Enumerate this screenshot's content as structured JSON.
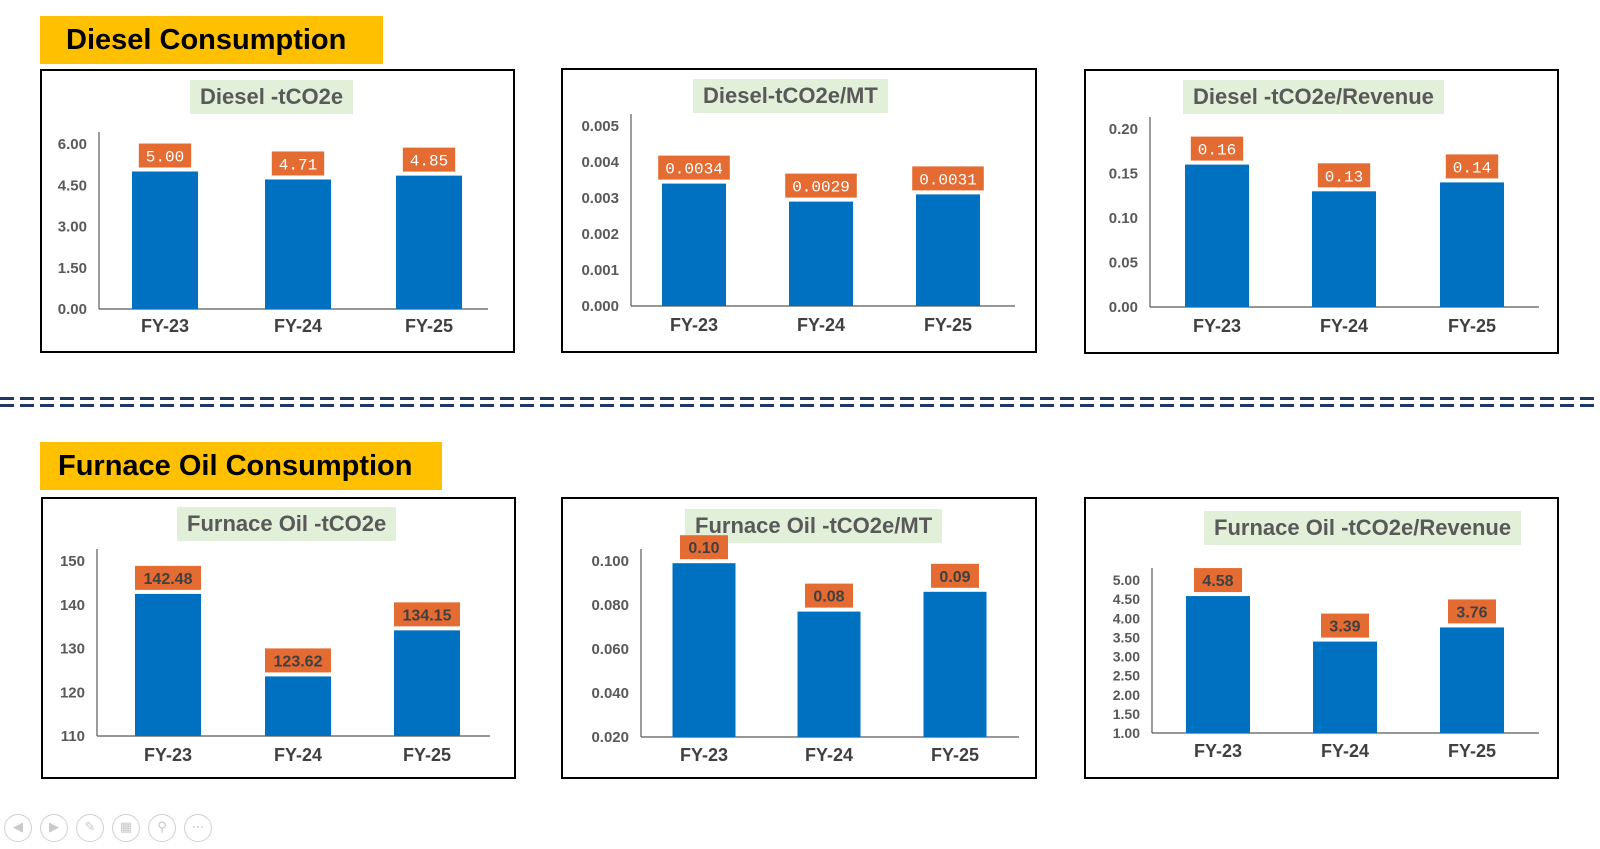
{
  "sections": {
    "diesel": "Diesel Consumption",
    "furnace": "Furnace Oil Consumption"
  },
  "colors": {
    "bar": "#0070c0",
    "label_bg": "#e46c33",
    "section_header": "#ffc000",
    "title_bg": "#e2f0d9",
    "divider": "#1f3864"
  },
  "player_controls": [
    "previous-icon",
    "next-icon",
    "pen-icon",
    "slides-icon",
    "zoom-icon",
    "more-icon"
  ],
  "chart_data": [
    {
      "type": "bar",
      "title": "Diesel -tCO2e",
      "categories": [
        "FY-23",
        "FY-24",
        "FY-25"
      ],
      "values": [
        5.0,
        4.71,
        4.85
      ],
      "data_labels": [
        "5.00",
        "4.71",
        "4.85"
      ],
      "ylim": [
        0,
        6
      ],
      "yticks": [
        "0.00",
        "1.50",
        "3.00",
        "4.50",
        "6.00"
      ],
      "label_font": "mono",
      "grid": false
    },
    {
      "type": "bar",
      "title": "Diesel-tCO2e/MT",
      "categories": [
        "FY-23",
        "FY-24",
        "FY-25"
      ],
      "values": [
        0.0034,
        0.0029,
        0.0031
      ],
      "data_labels": [
        "0.0034",
        "0.0029",
        "0.0031"
      ],
      "ylim": [
        0,
        0.005
      ],
      "yticks": [
        "0.000",
        "0.001",
        "0.002",
        "0.003",
        "0.004",
        "0.005"
      ],
      "label_font": "mono",
      "grid": false
    },
    {
      "type": "bar",
      "title": "Diesel -tCO2e/Revenue",
      "categories": [
        "FY-23",
        "FY-24",
        "FY-25"
      ],
      "values": [
        0.16,
        0.13,
        0.14
      ],
      "data_labels": [
        "0.16",
        "0.13",
        "0.14"
      ],
      "ylim": [
        0,
        0.2
      ],
      "yticks": [
        "0.00",
        "0.05",
        "0.10",
        "0.15",
        "0.20"
      ],
      "label_font": "mono",
      "grid": false
    },
    {
      "type": "bar",
      "title": "Furnace Oil -tCO2e",
      "categories": [
        "FY-23",
        "FY-24",
        "FY-25"
      ],
      "values": [
        142.48,
        123.62,
        134.15
      ],
      "data_labels": [
        "142.48",
        "123.62",
        "134.15"
      ],
      "ylim": [
        110,
        150
      ],
      "yticks": [
        "110",
        "120",
        "130",
        "140",
        "150"
      ],
      "label_font": "sans",
      "grid": false
    },
    {
      "type": "bar",
      "title": "Furnace Oil -tCO2e/MT",
      "categories": [
        "FY-23",
        "FY-24",
        "FY-25"
      ],
      "values": [
        0.099,
        0.077,
        0.086
      ],
      "data_labels": [
        "0.10",
        "0.08",
        "0.09"
      ],
      "ylim": [
        0.02,
        0.1
      ],
      "yticks": [
        "0.020",
        "0.040",
        "0.060",
        "0.080",
        "0.100"
      ],
      "label_font": "sans",
      "grid": false
    },
    {
      "type": "bar",
      "title": "Furnace Oil -tCO2e/Revenue",
      "categories": [
        "FY-23",
        "FY-24",
        "FY-25"
      ],
      "values": [
        4.58,
        3.39,
        3.76
      ],
      "data_labels": [
        "4.58",
        "3.39",
        "3.76"
      ],
      "ylim": [
        1,
        5
      ],
      "yticks": [
        "1.00",
        "1.50",
        "2.00",
        "2.50",
        "3.00",
        "3.50",
        "4.00",
        "4.50",
        "5.00"
      ],
      "label_font": "sans",
      "grid": false
    }
  ]
}
